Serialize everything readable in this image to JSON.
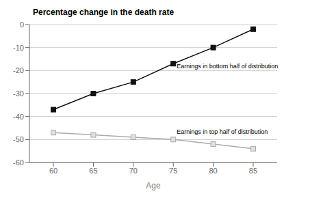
{
  "chart_data": {
    "type": "line",
    "title": "Percentage change in the death rate",
    "xlabel": "Age",
    "x": [
      60,
      65,
      70,
      75,
      80,
      85
    ],
    "series": [
      {
        "color": "#aaaaaa",
        "marker": "open_square",
        "values": [
          -47.0,
          -48.0,
          -49.0,
          -50.0,
          -52.0,
          -54.0
        ]
      },
      {
        "color": "#111111",
        "marker": "square",
        "values": [
          -37.0,
          -30.0,
          -25.0,
          -17.0,
          -10.0,
          -2.0
        ]
      }
    ],
    "xlim": [
      57,
      88
    ],
    "xticks": [
      60,
      65,
      70,
      75,
      80,
      85
    ],
    "ylim": [
      -60,
      0
    ],
    "yticks": [
      0,
      -10,
      -20,
      -30,
      -40,
      -50,
      -60
    ],
    "grid": "y",
    "annotations": [
      {
        "text": "Earnings in top half of distribution",
        "x": 75,
        "y": -46.5
      },
      {
        "text": "Earnings in bottom half of distribution",
        "x": 75,
        "y": -18.0
      }
    ]
  }
}
